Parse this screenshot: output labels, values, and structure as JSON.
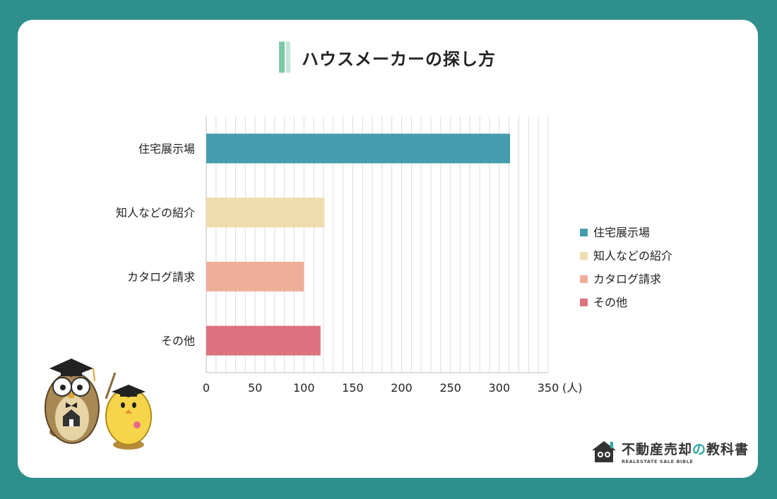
{
  "title": "ハウスメーカーの探し方",
  "unit": "(人)",
  "legend": [
    "住宅展示場",
    "知人などの紹介",
    "カタログ請求",
    "その他"
  ],
  "logo": {
    "main_pre": "不動産売却",
    "main_accent": "の",
    "main_post": "教科書",
    "sub": "REALESTATE SALE BIBLE"
  },
  "colors": {
    "bars": [
      "#449cae",
      "#efdcad",
      "#efae9a",
      "#dc737f"
    ],
    "background": "#2f8f8c",
    "accent": "#2aa7a0"
  },
  "chart_data": {
    "type": "bar",
    "orientation": "horizontal",
    "title": "ハウスメーカーの探し方",
    "categories": [
      "住宅展示場",
      "知人などの紹介",
      "カタログ請求",
      "その他"
    ],
    "values": [
      311,
      121,
      100,
      117
    ],
    "xlabel": "(人)",
    "xlim": [
      0,
      350
    ],
    "xticks": [
      0,
      50,
      100,
      150,
      200,
      250,
      300,
      350
    ],
    "grid": true,
    "legend_position": "right"
  }
}
